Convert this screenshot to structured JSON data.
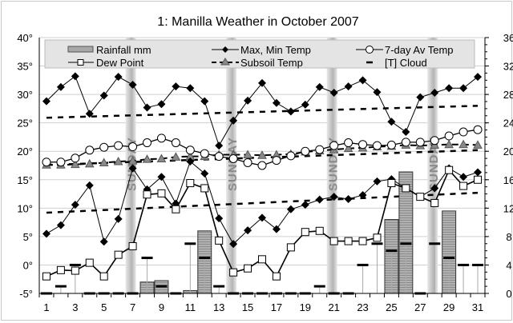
{
  "chart_data": {
    "type": "line",
    "title": "1: Manilla Weather in October 2007",
    "x": [
      1,
      2,
      3,
      4,
      5,
      6,
      7,
      8,
      9,
      10,
      11,
      12,
      13,
      14,
      15,
      16,
      17,
      18,
      19,
      20,
      21,
      22,
      23,
      24,
      25,
      26,
      27,
      28,
      29,
      30,
      31
    ],
    "x_tick_labels": [
      "1",
      "3",
      "5",
      "7",
      "9",
      "11",
      "13",
      "15",
      "17",
      "19",
      "21",
      "23",
      "25",
      "27",
      "29",
      "31"
    ],
    "left_axis": {
      "min": -5,
      "max": 40,
      "ticks": [
        "-5°",
        "0°",
        "5°",
        "10°",
        "15°",
        "20°",
        "25°",
        "30°",
        "35°",
        "40°"
      ]
    },
    "right_axis": {
      "min": 0,
      "max": 36,
      "ticks": [
        "0",
        "4",
        "8",
        "12",
        "16",
        "20",
        "24",
        "28",
        "32",
        "36"
      ]
    },
    "grid": true,
    "legend_position": "top",
    "sunday_label": "SUNDAY",
    "sundays": [
      7,
      14,
      21,
      28
    ],
    "series": [
      {
        "name": "Rainfall mm",
        "type": "bar",
        "axis": "right",
        "color": "#a8a8a8",
        "values": [
          0,
          0,
          0,
          0,
          0,
          0,
          0,
          1.6,
          1.8,
          0,
          0.4,
          8.8,
          0,
          0,
          0,
          0,
          0,
          0,
          0,
          0,
          0,
          0,
          0,
          0,
          10.4,
          17.1,
          0,
          0,
          11.6,
          0,
          0
        ]
      },
      {
        "name": "Max, Min Temp",
        "type": "line",
        "axis": "left",
        "marker": "diamond",
        "color": "#000000",
        "max": [
          28.8,
          31.3,
          33.2,
          26.6,
          29.8,
          33.1,
          31.7,
          27.7,
          28.3,
          31.4,
          31.1,
          28.8,
          21.0,
          25.4,
          28.9,
          32.0,
          28.5,
          27.0,
          28.2,
          31.3,
          30.3,
          31.4,
          32.5,
          30.4,
          25.2,
          23.4,
          29.5,
          30.3,
          31.1,
          31.1,
          33.1
        ],
        "min": [
          5.5,
          7.0,
          10.6,
          14.0,
          4.1,
          8.1,
          17.0,
          13.3,
          15.5,
          10.8,
          18.2,
          16.1,
          8.2,
          3.7,
          6.1,
          8.3,
          6.3,
          9.8,
          10.6,
          11.5,
          12.0,
          11.6,
          12.3,
          14.7,
          15.1,
          13.5,
          12.0,
          13.5,
          17.0,
          15.5,
          16.3
        ]
      },
      {
        "name": "7-day Av Temp",
        "type": "line",
        "axis": "left",
        "marker": "circle",
        "color": "#000000",
        "values": [
          18.1,
          18.1,
          18.8,
          20.2,
          20.7,
          21.0,
          20.8,
          21.5,
          22.3,
          21.5,
          20.2,
          19.6,
          19.1,
          18.7,
          18.0,
          17.5,
          18.4,
          19.2,
          20.0,
          20.3,
          21.0,
          21.5,
          21.2,
          21.0,
          21.1,
          21.6,
          21.6,
          21.9,
          22.7,
          23.4,
          23.8
        ]
      },
      {
        "name": "Dew Point",
        "type": "line",
        "axis": "left",
        "marker": "square",
        "color": "#000000",
        "values": [
          -2.0,
          -0.9,
          -1.0,
          0.4,
          -2.0,
          1.8,
          3.3,
          12.4,
          12.6,
          9.8,
          14.4,
          13.5,
          4.3,
          -1.3,
          -0.6,
          1.0,
          -2.0,
          3.1,
          5.8,
          6.0,
          4.2,
          4.2,
          4.2,
          4.8,
          14.4,
          13.5,
          12.0,
          10.9,
          16.7,
          13.9,
          15.0
        ]
      },
      {
        "name": "Subsoil Temp",
        "type": "line",
        "axis": "left",
        "marker": "triangle",
        "color": "#808080",
        "values": [
          17.6,
          17.6,
          17.7,
          17.8,
          18.0,
          18.2,
          18.3,
          18.6,
          18.7,
          19.0,
          19.1,
          19.1,
          19.4,
          19.4,
          19.4,
          19.3,
          19.4,
          19.5,
          19.9,
          20.1,
          20.3,
          20.5,
          20.6,
          20.8,
          20.9,
          21.1,
          21.0,
          21.1,
          21.2,
          21.2,
          21.1
        ]
      },
      {
        "name": "[T] Cloud",
        "type": "marker",
        "axis": "right",
        "marker": "dash",
        "color": "#000000",
        "values": [
          0,
          1,
          4,
          0,
          0,
          0,
          0,
          5,
          1,
          0,
          7,
          5,
          1,
          0,
          0,
          0,
          0,
          0,
          0,
          1,
          0,
          0,
          4,
          7,
          6,
          7,
          0,
          7,
          5,
          4,
          4
        ]
      }
    ],
    "trendlines": [
      {
        "of": "Max Temp",
        "start": 25.9,
        "end": 28.0
      },
      {
        "of": "7-day Av Temp",
        "start": 17.6,
        "end": 20.2
      },
      {
        "of": "Min Temp",
        "start": 9.2,
        "end": 12.7
      }
    ]
  }
}
